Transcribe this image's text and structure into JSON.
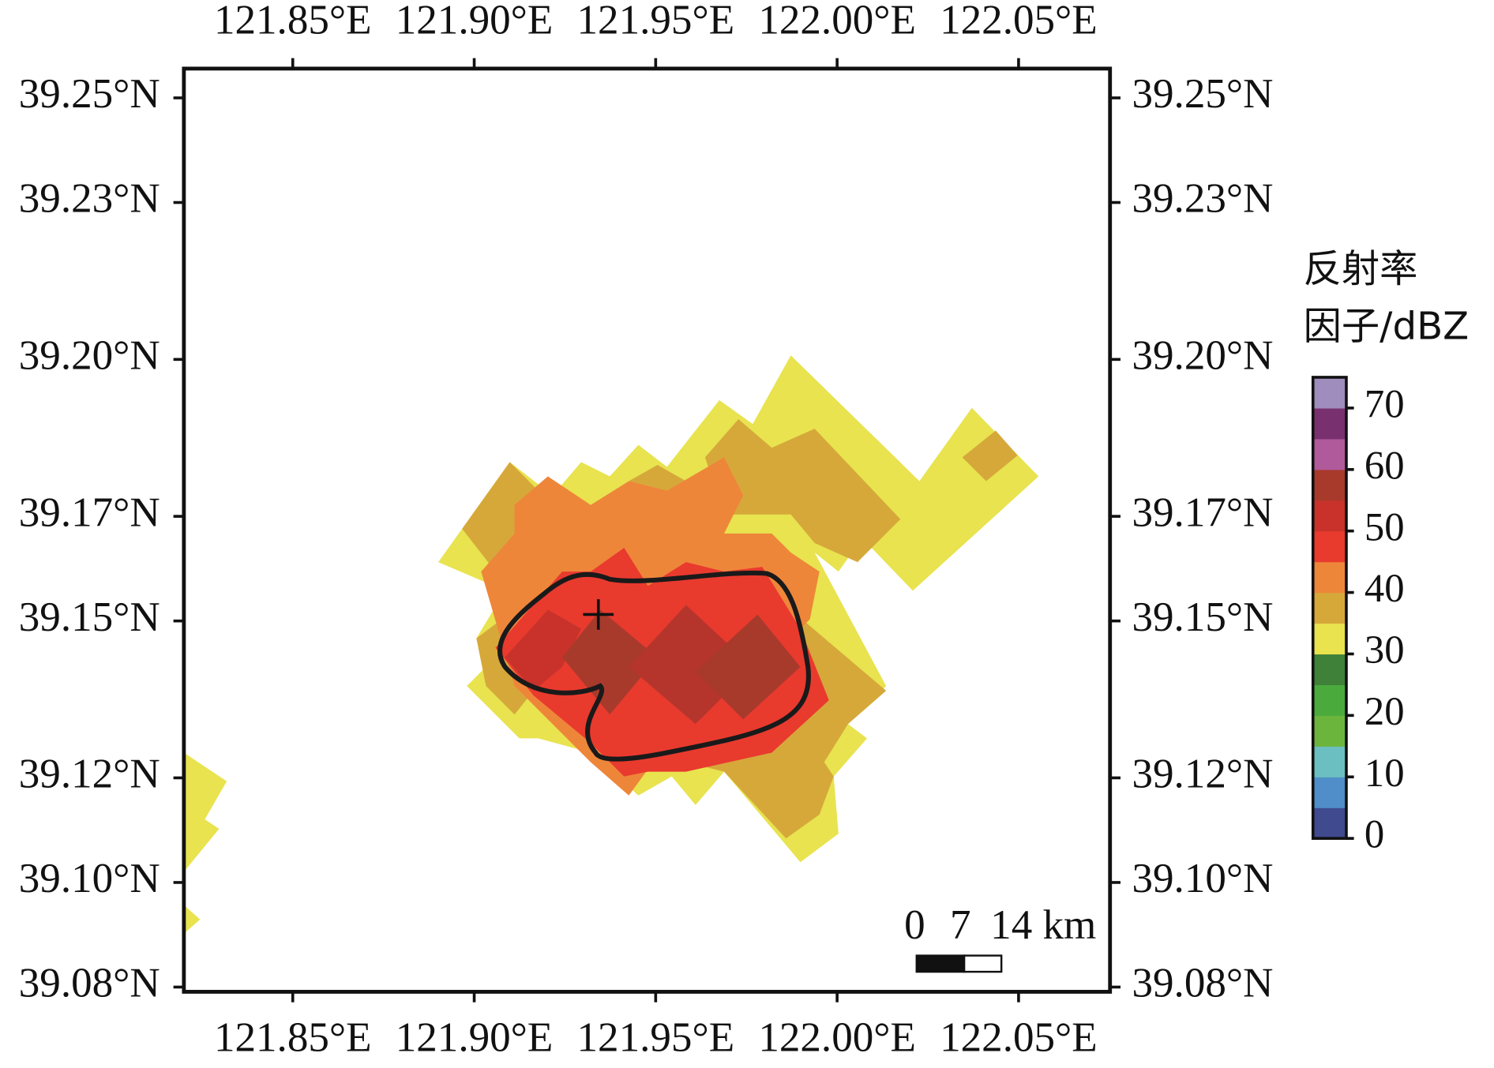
{
  "map": {
    "xlim": [
      121.82,
      122.0752
    ],
    "ylim": [
      39.0791,
      39.2556
    ],
    "xticks": [
      {
        "value": 121.85,
        "label": "121.85°E"
      },
      {
        "value": 121.9,
        "label": "121.90°E"
      },
      {
        "value": 121.95,
        "label": "121.95°E"
      },
      {
        "value": 122.0,
        "label": "122.00°E"
      },
      {
        "value": 122.05,
        "label": "122.05°E"
      }
    ],
    "yticks": [
      {
        "value": 39.25,
        "label": "39.25°N"
      },
      {
        "value": 39.23,
        "label": "39.23°N"
      },
      {
        "value": 39.2,
        "label": "39.20°N"
      },
      {
        "value": 39.17,
        "label": "39.17°N"
      },
      {
        "value": 39.15,
        "label": "39.15°N"
      },
      {
        "value": 39.12,
        "label": "39.12°N"
      },
      {
        "value": 39.1,
        "label": "39.10°N"
      },
      {
        "value": 39.08,
        "label": "39.08°N"
      }
    ],
    "colorbar": {
      "title": [
        "反射率",
        "因子/dBZ"
      ],
      "lim": [
        0,
        75
      ],
      "ticks": [
        0,
        10,
        20,
        30,
        40,
        50,
        60,
        70
      ],
      "colors": [
        "#3f4a8f",
        "#4f8ec8",
        "#6bbfc0",
        "#6cb53d",
        "#4aab3c",
        "#3f8139",
        "#e8e34f",
        "#d6a83a",
        "#ee863a",
        "#e93a2e",
        "#c8322b",
        "#a83a2c",
        "#b05a9c",
        "#78306f",
        "#9f8dbd"
      ]
    },
    "scalebar": {
      "labels": [
        "0",
        "7",
        "14 km"
      ]
    }
  }
}
